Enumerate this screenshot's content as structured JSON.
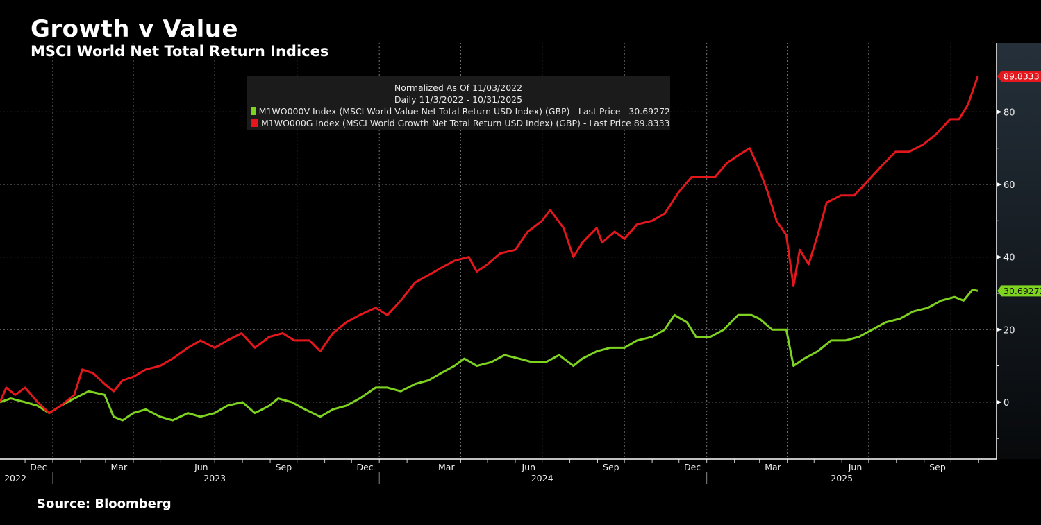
{
  "header": {
    "title": "Growth v Value",
    "subtitle": "MSCI World Net Total Return Indices"
  },
  "footer": {
    "source": "Source: Bloomberg"
  },
  "legend": {
    "line1": "Normalized As Of 11/03/2022",
    "line2": "Daily 11/3/2022 - 10/31/2025",
    "items": [
      {
        "label": "M1WO000V Index (MSCI World Value Net Total Return USD Index) (GBP) - Last Price   30.69272",
        "color": "#7ed321"
      },
      {
        "label": "M1WO000G Index (MSCI World Growth Net Total Return USD Index) (GBP) - Last Price 89.8333",
        "color": "#e3171c"
      }
    ]
  },
  "chart_data": {
    "type": "line",
    "title": "Growth v Value",
    "subtitle": "MSCI World Net Total Return Indices",
    "xlabel": "",
    "ylabel": "",
    "x_range": [
      "2022-11-03",
      "2025-10-31"
    ],
    "ylim": [
      -15.7,
      99
    ],
    "y_ticks": [
      0,
      20,
      40,
      60,
      80
    ],
    "y_minor_ticks": [
      -10,
      10,
      30,
      50,
      70
    ],
    "y_axis_side": "right",
    "grid": true,
    "x_month_labels": [
      {
        "label": "Dec",
        "date": "2022-12-16"
      },
      {
        "label": "Mar",
        "date": "2023-03-16"
      },
      {
        "label": "Jun",
        "date": "2023-06-16"
      },
      {
        "label": "Sep",
        "date": "2023-09-16"
      },
      {
        "label": "Dec",
        "date": "2023-12-16"
      },
      {
        "label": "Mar",
        "date": "2024-03-16"
      },
      {
        "label": "Jun",
        "date": "2024-06-16"
      },
      {
        "label": "Sep",
        "date": "2024-09-16"
      },
      {
        "label": "Dec",
        "date": "2024-12-16"
      },
      {
        "label": "Mar",
        "date": "2025-03-16"
      },
      {
        "label": "Jun",
        "date": "2025-06-16"
      },
      {
        "label": "Sep",
        "date": "2025-09-16"
      }
    ],
    "x_year_labels": [
      {
        "label": "2022",
        "date": "2022-12-01"
      },
      {
        "label": "2023",
        "date": "2023-07-01"
      },
      {
        "label": "2024",
        "date": "2024-07-01"
      },
      {
        "label": "2025",
        "date": "2025-06-01"
      }
    ],
    "series": [
      {
        "name": "M1WO000V Index",
        "color": "#7ed321",
        "last_label": "30.69272",
        "points": [
          [
            "2022-11-03",
            0
          ],
          [
            "2022-11-15",
            1
          ],
          [
            "2022-12-01",
            0
          ],
          [
            "2022-12-15",
            -1
          ],
          [
            "2022-12-28",
            -3
          ],
          [
            "2023-01-10",
            -1
          ],
          [
            "2023-01-25",
            1
          ],
          [
            "2023-02-10",
            3
          ],
          [
            "2023-02-28",
            2
          ],
          [
            "2023-03-10",
            -4
          ],
          [
            "2023-03-20",
            -5
          ],
          [
            "2023-04-01",
            -3
          ],
          [
            "2023-04-15",
            -2
          ],
          [
            "2023-05-01",
            -4
          ],
          [
            "2023-05-15",
            -5
          ],
          [
            "2023-06-01",
            -3
          ],
          [
            "2023-06-15",
            -4
          ],
          [
            "2023-07-01",
            -3
          ],
          [
            "2023-07-15",
            -1
          ],
          [
            "2023-08-01",
            0
          ],
          [
            "2023-08-15",
            -3
          ],
          [
            "2023-08-31",
            -1
          ],
          [
            "2023-09-10",
            1
          ],
          [
            "2023-09-25",
            0
          ],
          [
            "2023-10-10",
            -2
          ],
          [
            "2023-10-27",
            -4
          ],
          [
            "2023-11-10",
            -2
          ],
          [
            "2023-11-25",
            -1
          ],
          [
            "2023-12-10",
            1
          ],
          [
            "2023-12-28",
            4
          ],
          [
            "2024-01-10",
            4
          ],
          [
            "2024-01-25",
            3
          ],
          [
            "2024-02-10",
            5
          ],
          [
            "2024-02-25",
            6
          ],
          [
            "2024-03-10",
            8
          ],
          [
            "2024-03-25",
            10
          ],
          [
            "2024-04-05",
            12
          ],
          [
            "2024-04-19",
            10
          ],
          [
            "2024-05-05",
            11
          ],
          [
            "2024-05-20",
            13
          ],
          [
            "2024-06-05",
            12
          ],
          [
            "2024-06-20",
            11
          ],
          [
            "2024-07-05",
            11
          ],
          [
            "2024-07-20",
            13
          ],
          [
            "2024-08-05",
            10
          ],
          [
            "2024-08-15",
            12
          ],
          [
            "2024-08-31",
            14
          ],
          [
            "2024-09-15",
            15
          ],
          [
            "2024-10-01",
            15
          ],
          [
            "2024-10-15",
            17
          ],
          [
            "2024-11-01",
            18
          ],
          [
            "2024-11-15",
            20
          ],
          [
            "2024-11-26",
            24
          ],
          [
            "2024-12-10",
            22
          ],
          [
            "2024-12-20",
            18
          ],
          [
            "2025-01-05",
            18
          ],
          [
            "2025-01-20",
            20
          ],
          [
            "2025-02-05",
            24
          ],
          [
            "2025-02-20",
            24
          ],
          [
            "2025-03-01",
            23
          ],
          [
            "2025-03-15",
            20
          ],
          [
            "2025-03-31",
            20
          ],
          [
            "2025-04-08",
            10
          ],
          [
            "2025-04-20",
            12
          ],
          [
            "2025-05-05",
            14
          ],
          [
            "2025-05-20",
            17
          ],
          [
            "2025-06-05",
            17
          ],
          [
            "2025-06-20",
            18
          ],
          [
            "2025-07-05",
            20
          ],
          [
            "2025-07-20",
            22
          ],
          [
            "2025-08-05",
            23
          ],
          [
            "2025-08-20",
            25
          ],
          [
            "2025-09-05",
            26
          ],
          [
            "2025-09-20",
            28
          ],
          [
            "2025-10-05",
            29
          ],
          [
            "2025-10-15",
            28
          ],
          [
            "2025-10-25",
            31
          ],
          [
            "2025-10-31",
            30.69
          ]
        ]
      },
      {
        "name": "M1WO000G Index",
        "color": "#e3171c",
        "last_label": "89.8333",
        "points": [
          [
            "2022-11-03",
            0
          ],
          [
            "2022-11-10",
            4
          ],
          [
            "2022-11-20",
            2
          ],
          [
            "2022-12-01",
            4
          ],
          [
            "2022-12-15",
            0
          ],
          [
            "2022-12-28",
            -3
          ],
          [
            "2023-01-10",
            -1
          ],
          [
            "2023-01-25",
            2
          ],
          [
            "2023-02-03",
            9
          ],
          [
            "2023-02-15",
            8
          ],
          [
            "2023-02-28",
            5
          ],
          [
            "2023-03-10",
            3
          ],
          [
            "2023-03-20",
            6
          ],
          [
            "2023-04-01",
            7
          ],
          [
            "2023-04-15",
            9
          ],
          [
            "2023-05-01",
            10
          ],
          [
            "2023-05-15",
            12
          ],
          [
            "2023-06-01",
            15
          ],
          [
            "2023-06-15",
            17
          ],
          [
            "2023-07-01",
            15
          ],
          [
            "2023-07-15",
            17
          ],
          [
            "2023-07-31",
            19
          ],
          [
            "2023-08-15",
            15
          ],
          [
            "2023-08-31",
            18
          ],
          [
            "2023-09-15",
            19
          ],
          [
            "2023-09-28",
            17
          ],
          [
            "2023-10-15",
            17
          ],
          [
            "2023-10-27",
            14
          ],
          [
            "2023-11-10",
            19
          ],
          [
            "2023-11-25",
            22
          ],
          [
            "2023-12-10",
            24
          ],
          [
            "2023-12-28",
            26
          ],
          [
            "2024-01-10",
            24
          ],
          [
            "2024-01-25",
            28
          ],
          [
            "2024-02-10",
            33
          ],
          [
            "2024-02-25",
            35
          ],
          [
            "2024-03-10",
            37
          ],
          [
            "2024-03-25",
            39
          ],
          [
            "2024-04-10",
            40
          ],
          [
            "2024-04-19",
            36
          ],
          [
            "2024-05-01",
            38
          ],
          [
            "2024-05-15",
            41
          ],
          [
            "2024-06-01",
            42
          ],
          [
            "2024-06-15",
            47
          ],
          [
            "2024-07-01",
            50
          ],
          [
            "2024-07-10",
            53
          ],
          [
            "2024-07-25",
            48
          ],
          [
            "2024-08-05",
            40
          ],
          [
            "2024-08-15",
            44
          ],
          [
            "2024-08-31",
            48
          ],
          [
            "2024-09-06",
            44
          ],
          [
            "2024-09-20",
            47
          ],
          [
            "2024-10-01",
            45
          ],
          [
            "2024-10-15",
            49
          ],
          [
            "2024-11-01",
            50
          ],
          [
            "2024-11-15",
            52
          ],
          [
            "2024-12-01",
            58
          ],
          [
            "2024-12-15",
            62
          ],
          [
            "2024-12-31",
            62
          ],
          [
            "2025-01-10",
            62
          ],
          [
            "2025-01-24",
            66
          ],
          [
            "2025-02-05",
            68
          ],
          [
            "2025-02-18",
            70
          ],
          [
            "2025-03-01",
            64
          ],
          [
            "2025-03-10",
            58
          ],
          [
            "2025-03-20",
            50
          ],
          [
            "2025-03-31",
            46
          ],
          [
            "2025-04-08",
            32
          ],
          [
            "2025-04-15",
            42
          ],
          [
            "2025-04-25",
            38
          ],
          [
            "2025-05-05",
            46
          ],
          [
            "2025-05-15",
            55
          ],
          [
            "2025-05-31",
            57
          ],
          [
            "2025-06-15",
            57
          ],
          [
            "2025-06-30",
            61
          ],
          [
            "2025-07-15",
            65
          ],
          [
            "2025-07-31",
            69
          ],
          [
            "2025-08-15",
            69
          ],
          [
            "2025-08-31",
            71
          ],
          [
            "2025-09-15",
            74
          ],
          [
            "2025-09-30",
            78
          ],
          [
            "2025-10-10",
            78
          ],
          [
            "2025-10-20",
            82
          ],
          [
            "2025-10-31",
            89.83
          ]
        ]
      }
    ]
  }
}
